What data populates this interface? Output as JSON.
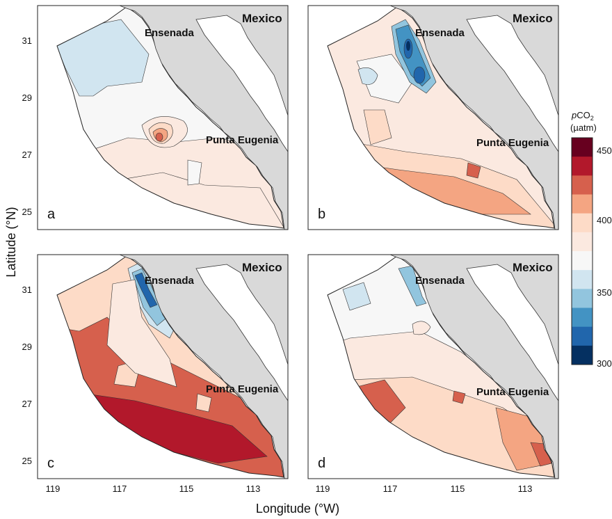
{
  "figure": {
    "y_axis_title": "Latitude (°N)",
    "x_axis_title": "Longitude (°W)",
    "lat_ticks": [
      "31",
      "29",
      "27",
      "25"
    ],
    "lon_ticks": [
      "119",
      "117",
      "115",
      "113"
    ]
  },
  "places": {
    "country": "Mexico",
    "city": "Ensenada",
    "cape": "Punta Eugenia"
  },
  "panels": [
    {
      "letter": "a"
    },
    {
      "letter": "b"
    },
    {
      "letter": "c"
    },
    {
      "letter": "d"
    }
  ],
  "colorbar": {
    "title_italic": "p",
    "title_main": "CO",
    "title_sub": "2",
    "units": "(µatm)",
    "tick_labels": [
      "450",
      "400",
      "350",
      "300"
    ],
    "colors": [
      "#67001f",
      "#b2182b",
      "#d6604d",
      "#f4a582",
      "#fddbc7",
      "#fbe9e0",
      "#f7f7f7",
      "#d1e5f0",
      "#92c5de",
      "#4393c3",
      "#2166ac",
      "#053061"
    ]
  }
}
